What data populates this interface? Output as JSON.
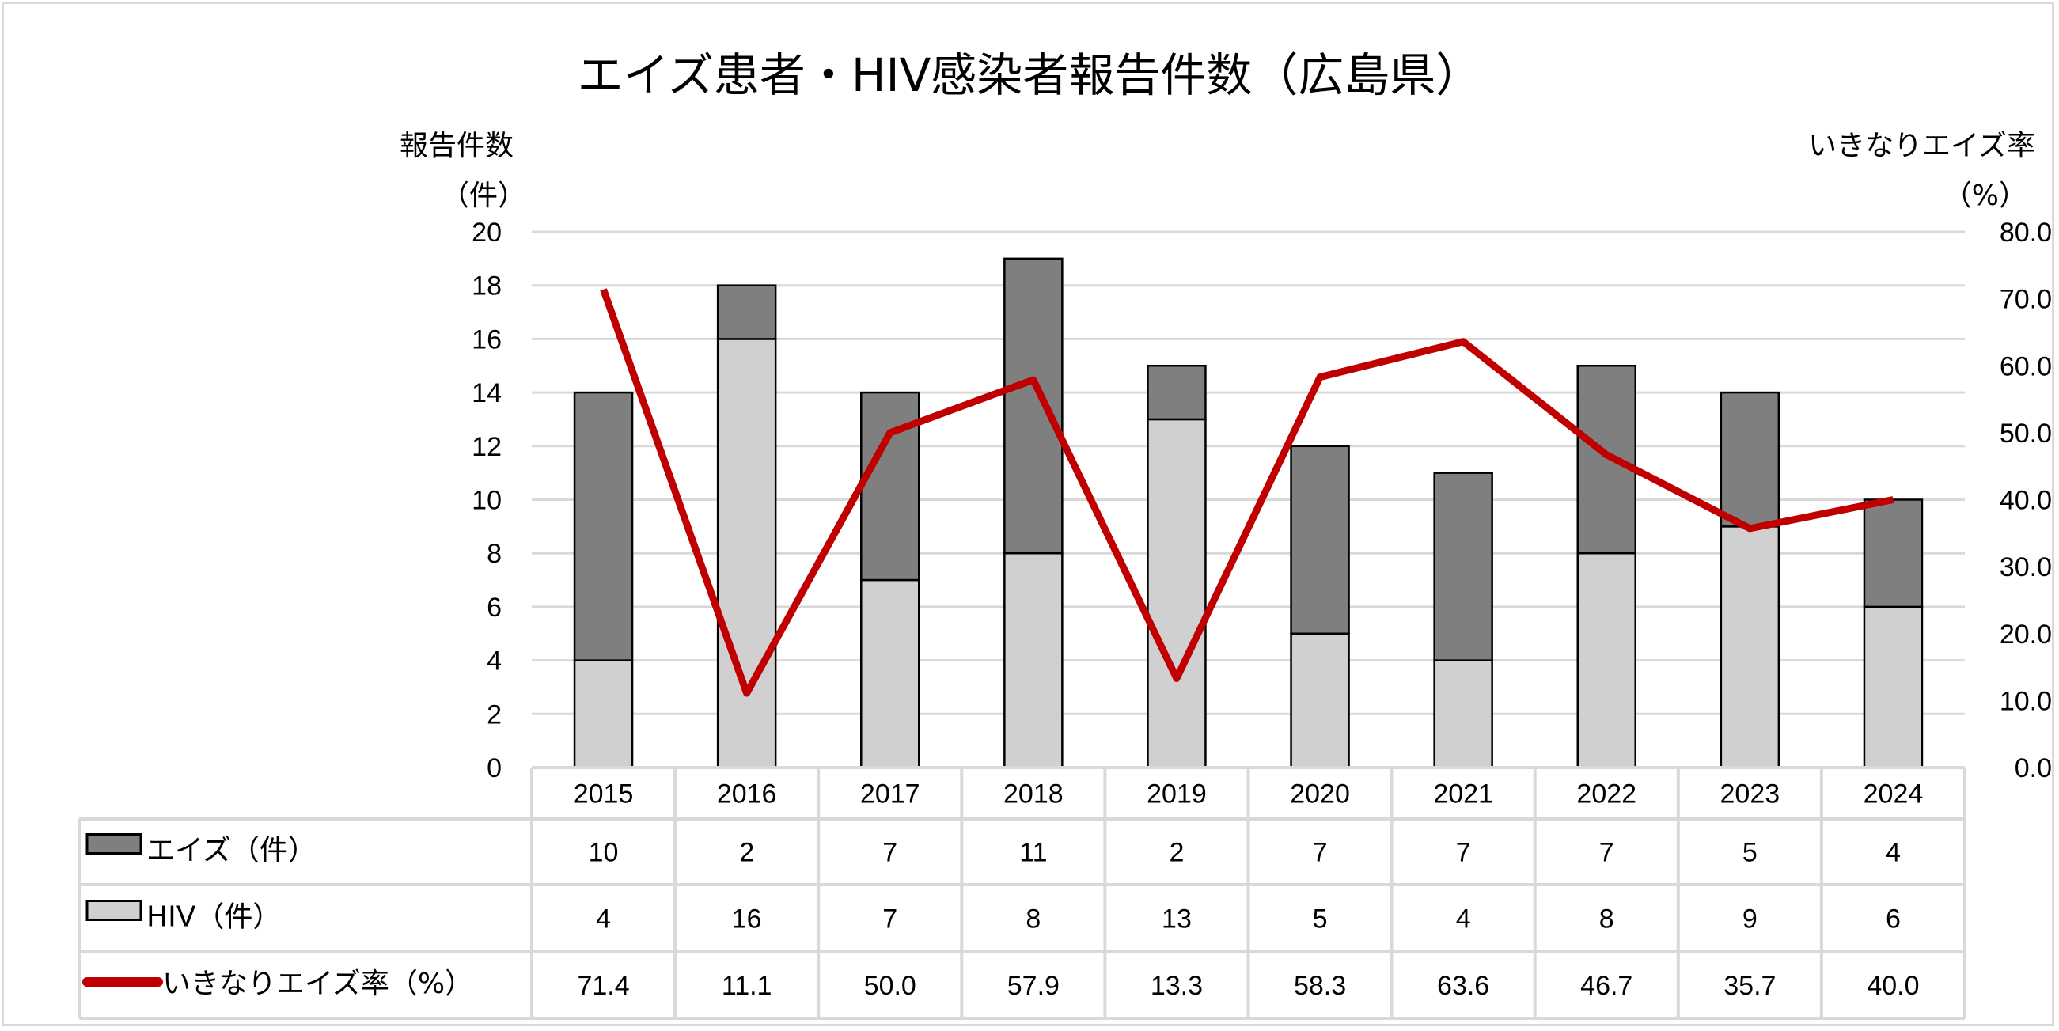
{
  "chart_data": {
    "type": "bar",
    "stacked": true,
    "title": "エイズ患者・HIV感染者報告件数（広島県）",
    "ylabel": "報告件数",
    "ylabel_unit": "（件）",
    "y2label": "いきなりエイズ率",
    "y2label_unit": "（%）",
    "ylim": [
      0,
      20
    ],
    "y2lim": [
      0,
      80
    ],
    "yticks": [
      "0",
      "2",
      "4",
      "6",
      "8",
      "10",
      "12",
      "14",
      "16",
      "18",
      "20"
    ],
    "y2ticks": [
      "0.0",
      "10.0",
      "20.0",
      "30.0",
      "40.0",
      "50.0",
      "60.0",
      "70.0",
      "80.0"
    ],
    "grid": true,
    "categories": [
      "2015",
      "2016",
      "2017",
      "2018",
      "2019",
      "2020",
      "2021",
      "2022",
      "2023",
      "2024"
    ],
    "series": [
      {
        "name": "HIV（件）",
        "type": "bar",
        "color": "#d0d0d0",
        "values": [
          4,
          16,
          7,
          8,
          13,
          5,
          4,
          8,
          9,
          6
        ]
      },
      {
        "name": "エイズ（件）",
        "type": "bar",
        "color": "#7f7f7f",
        "values": [
          10,
          2,
          7,
          11,
          2,
          7,
          7,
          7,
          5,
          4
        ]
      },
      {
        "name": "いきなりエイズ率（%）",
        "type": "line",
        "axis": "right",
        "color": "#c00000",
        "values": [
          "71.4",
          "11.1",
          "50.0",
          "57.9",
          "13.3",
          "58.3",
          "63.6",
          "46.7",
          "35.7",
          "40.0"
        ]
      }
    ],
    "legend": "data-table"
  }
}
